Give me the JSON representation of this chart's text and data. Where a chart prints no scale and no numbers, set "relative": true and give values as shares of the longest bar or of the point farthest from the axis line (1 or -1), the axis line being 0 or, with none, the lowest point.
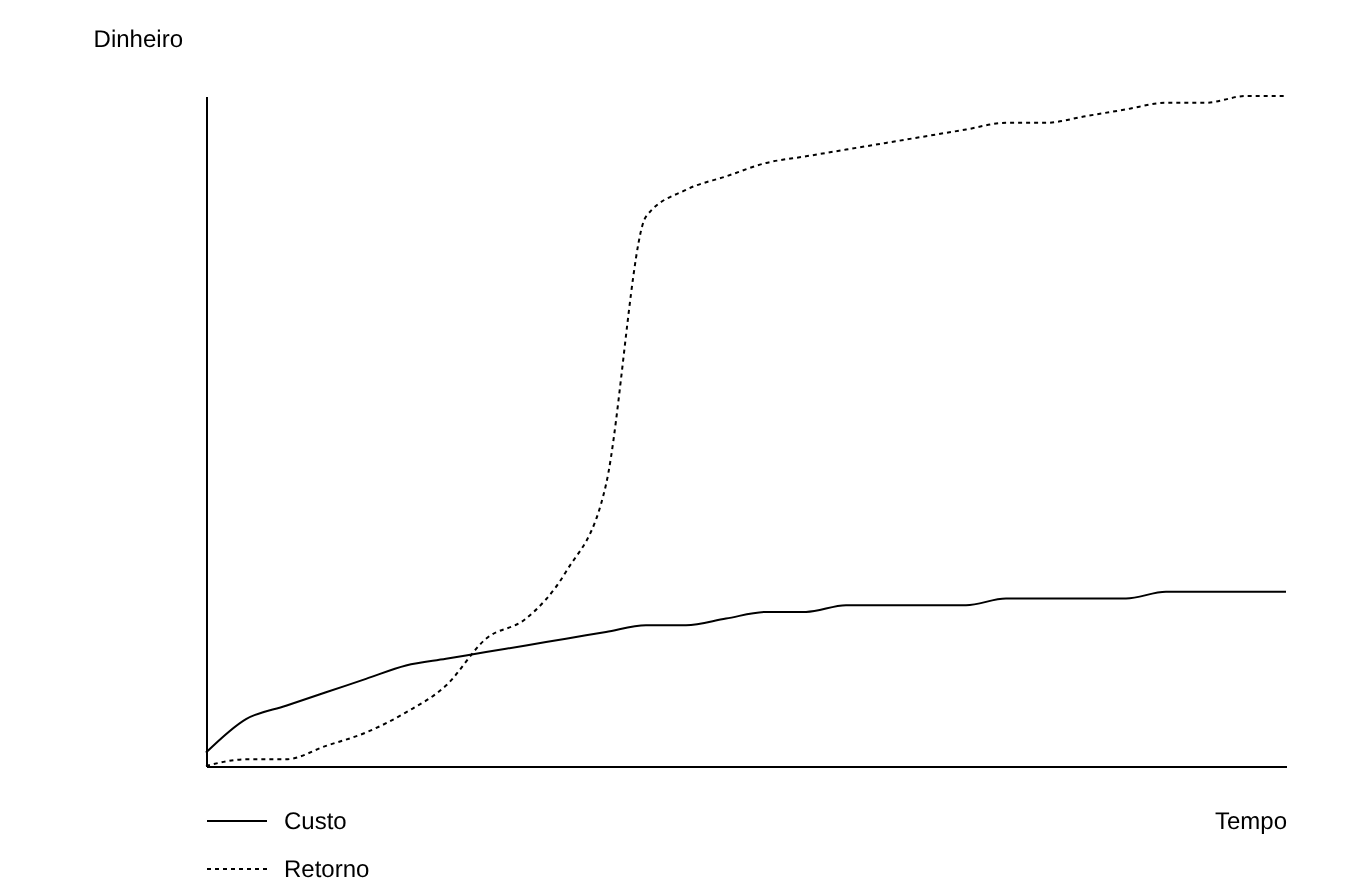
{
  "chart_data": {
    "type": "line",
    "relative": true,
    "xlabel": "Tempo",
    "ylabel": "Dinheiro",
    "legend": "bottom",
    "grid": false,
    "marker": "none",
    "categories": [
      null,
      null,
      null,
      null,
      null,
      null,
      null,
      null,
      null,
      null,
      null,
      null,
      null,
      null,
      null,
      null,
      null,
      null,
      null,
      null,
      null,
      null,
      null,
      null,
      null,
      null,
      null,
      null
    ],
    "series": [
      {
        "name": "Custo",
        "color": "#000000",
        "line_style": "solid",
        "values": [
          0.02,
          0.07,
          0.09,
          0.11,
          0.13,
          0.15,
          0.16,
          0.17,
          0.18,
          0.19,
          0.2,
          0.21,
          0.21,
          0.22,
          0.23,
          0.23,
          0.24,
          0.24,
          0.24,
          0.24,
          0.25,
          0.25,
          0.25,
          0.25,
          0.26,
          0.26,
          0.26,
          0.26
        ]
      },
      {
        "name": "Retorno",
        "color": "#000000",
        "line_style": "dotted",
        "values": [
          0,
          0.01,
          0.01,
          0.03,
          0.05,
          0.08,
          0.12,
          0.19,
          0.22,
          0.29,
          0.42,
          0.82,
          0.86,
          0.88,
          0.9,
          0.91,
          0.92,
          0.93,
          0.94,
          0.95,
          0.96,
          0.96,
          0.97,
          0.98,
          0.99,
          0.99,
          1.0,
          1.0
        ]
      }
    ]
  }
}
